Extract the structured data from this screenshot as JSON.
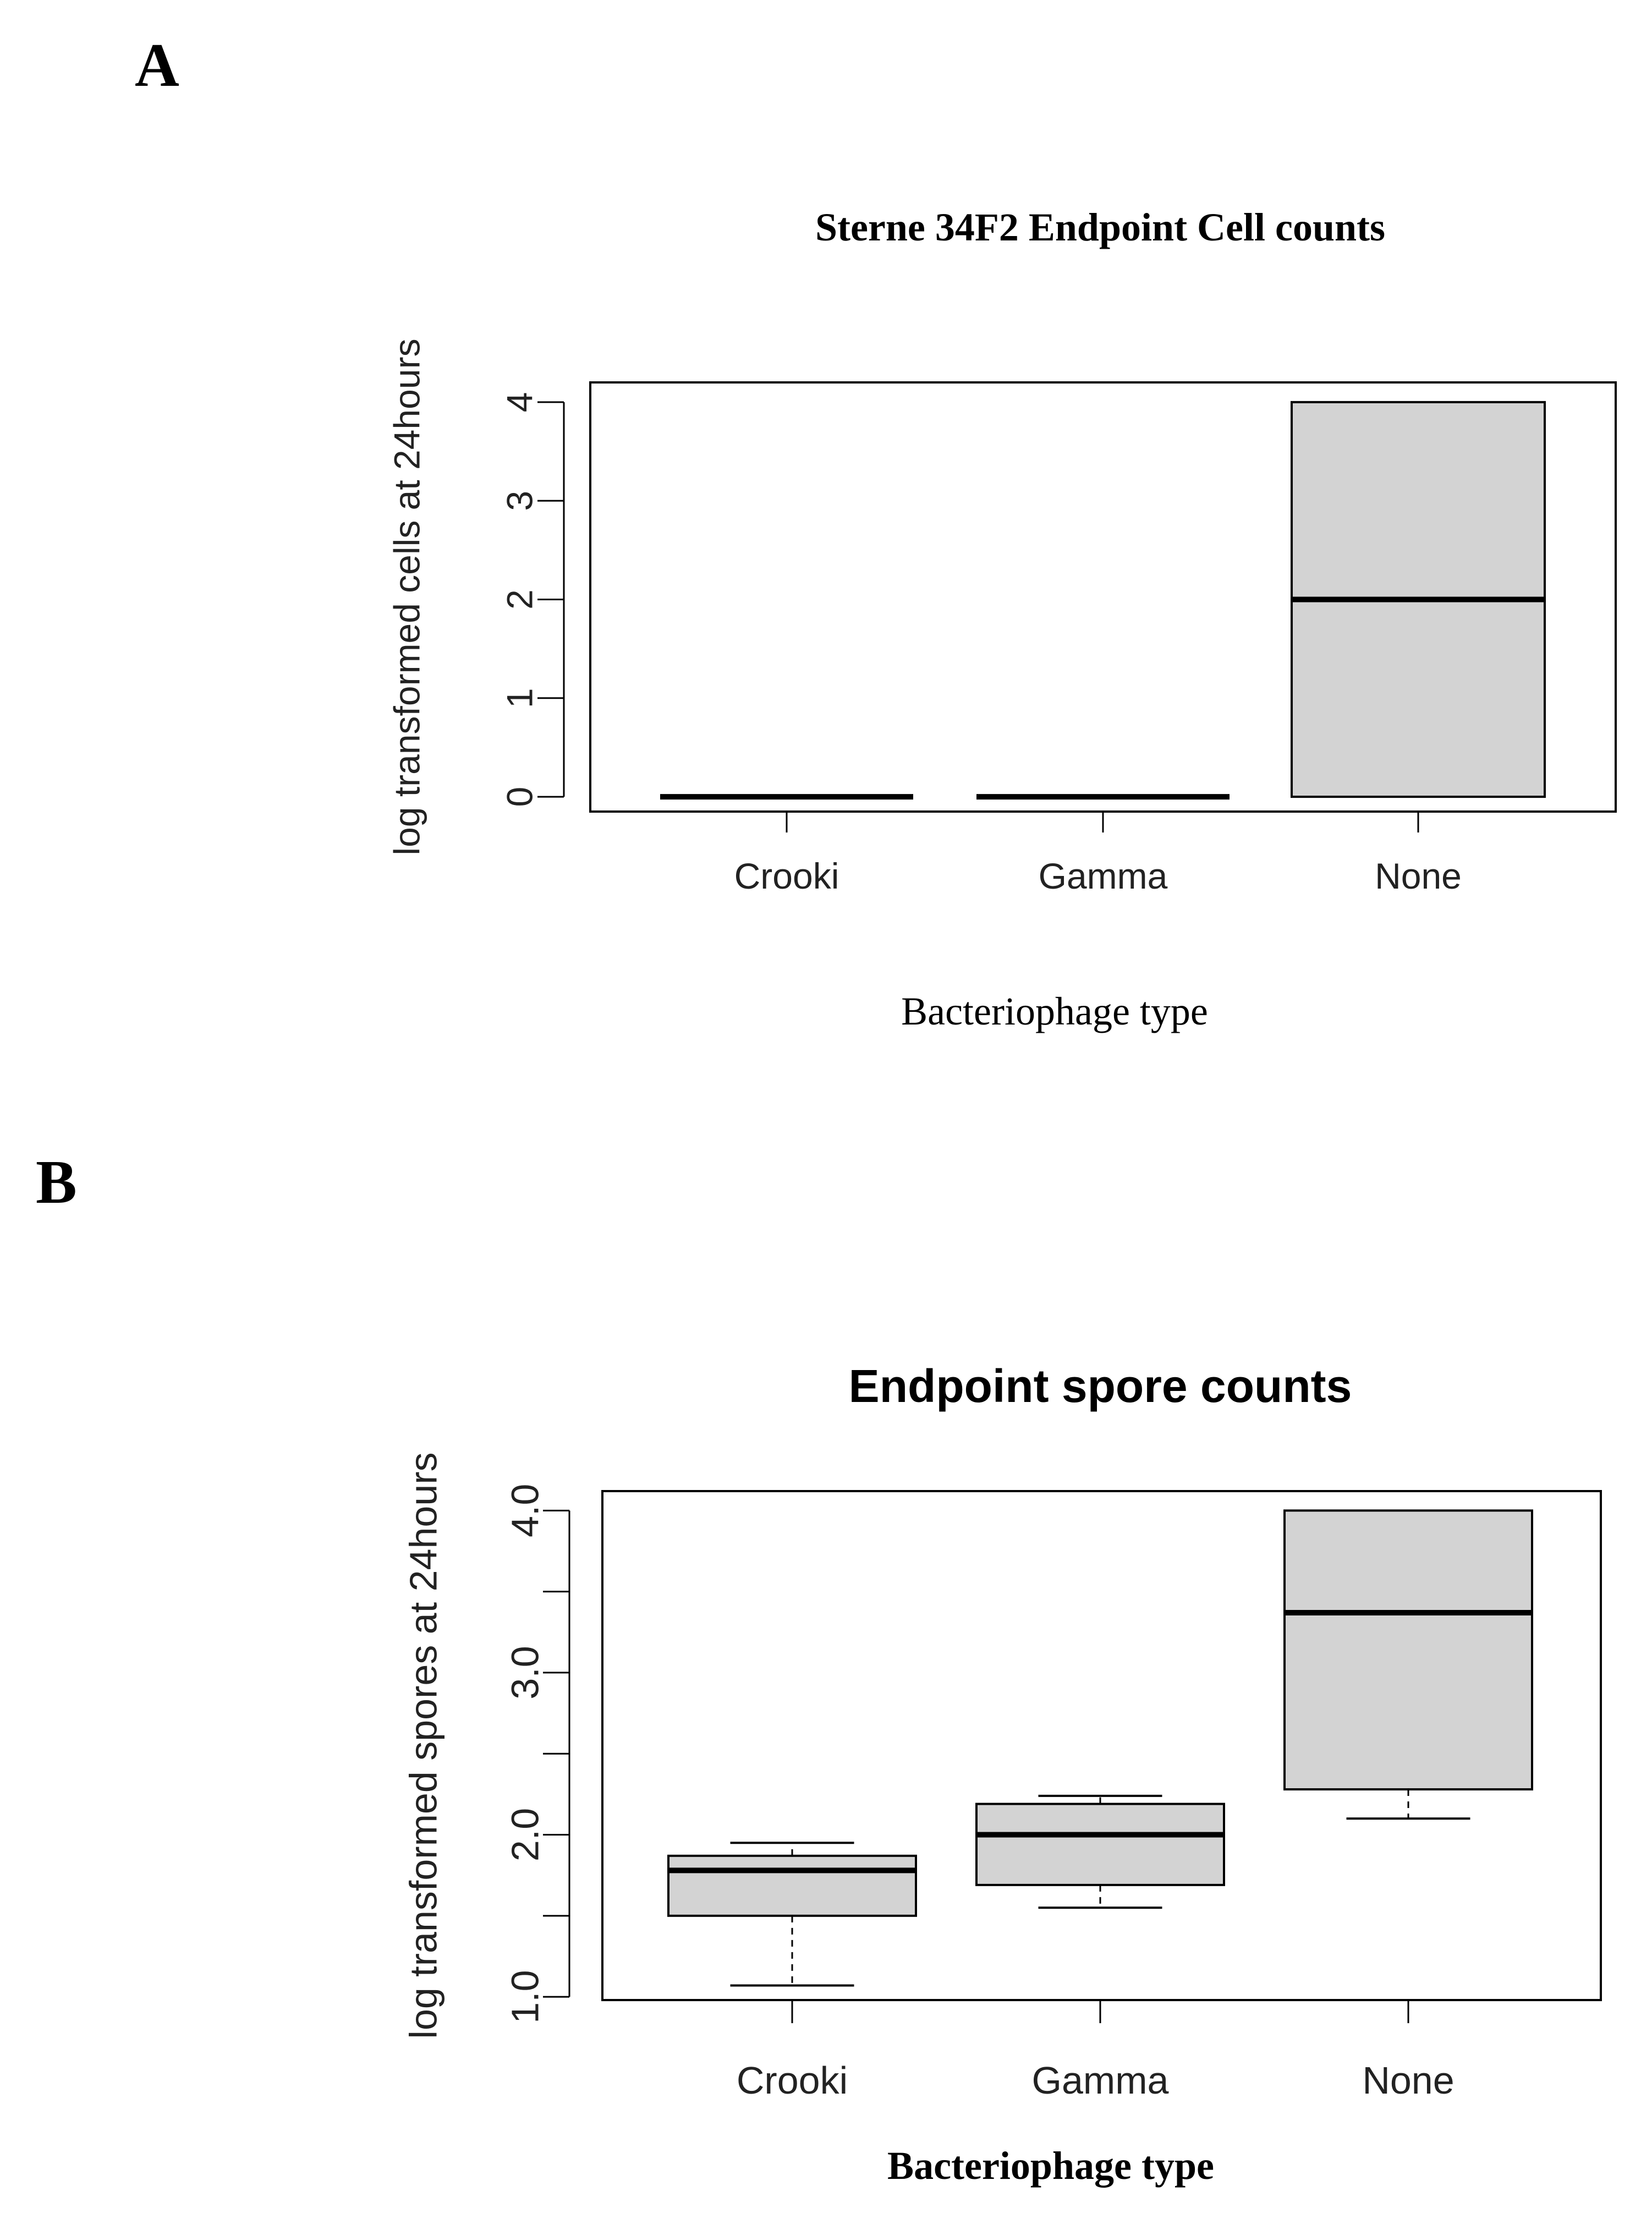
{
  "panels": {
    "a_label": "A",
    "b_label": "B"
  },
  "chart_data": [
    {
      "type": "box",
      "title": "Sterne 34F2 Endpoint Cell counts",
      "xlabel": "Bacteriophage type",
      "ylabel": "log transformed cells at 24hours",
      "categories": [
        "Crooki",
        "Gamma",
        "None"
      ],
      "yticks": [
        0,
        1,
        2,
        3,
        4
      ],
      "ytick_labels": [
        "0",
        "1",
        "2",
        "3",
        "4"
      ],
      "ylim": [
        -0.15,
        4.2
      ],
      "boxes": [
        {
          "category": "Crooki",
          "min": 0,
          "q1": 0,
          "median": 0,
          "q3": 0,
          "max": 0
        },
        {
          "category": "Gamma",
          "min": 0,
          "q1": 0,
          "median": 0,
          "q3": 0,
          "max": 0
        },
        {
          "category": "None",
          "min": 0,
          "q1": 0,
          "median": 2,
          "q3": 4,
          "max": 4
        }
      ],
      "fill": "#d3d3d3"
    },
    {
      "type": "box",
      "title": "Endpoint spore counts",
      "xlabel": "Bacteriophage type",
      "ylabel": "log transformed spores at 24hours",
      "categories": [
        "Crooki",
        "Gamma",
        "None"
      ],
      "yticks": [
        1.0,
        1.5,
        2.0,
        2.5,
        3.0,
        3.5,
        4.0
      ],
      "ytick_labels": [
        "1.0",
        "",
        "2.0",
        "",
        "3.0",
        "",
        "4.0"
      ],
      "ylim": [
        0.98,
        4.12
      ],
      "boxes": [
        {
          "category": "Crooki",
          "min": 1.07,
          "q1": 1.5,
          "median": 1.78,
          "q3": 1.87,
          "max": 1.95
        },
        {
          "category": "Gamma",
          "min": 1.55,
          "q1": 1.69,
          "median": 2.0,
          "q3": 2.19,
          "max": 2.24
        },
        {
          "category": "None",
          "min": 2.1,
          "q1": 2.28,
          "median": 3.37,
          "q3": 4.0,
          "max": 4.0
        }
      ],
      "fill": "#d3d3d3"
    }
  ]
}
